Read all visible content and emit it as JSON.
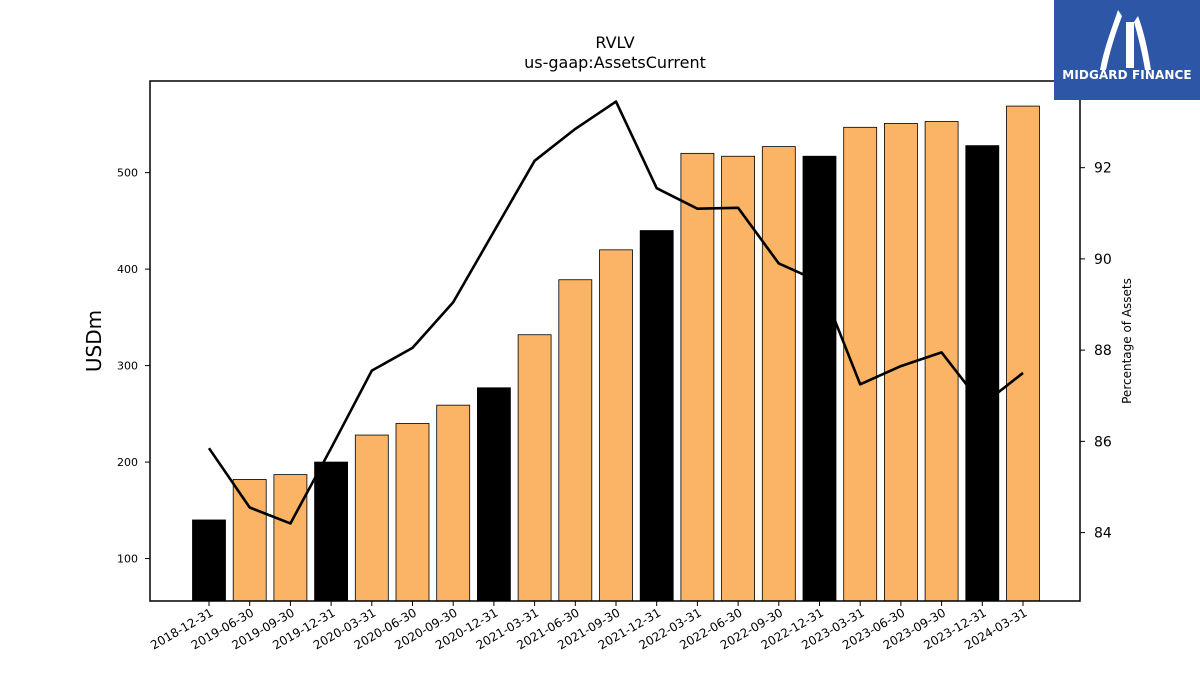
{
  "logo": {
    "text": "MIDGARD FINANCE",
    "background": "#2d56a6"
  },
  "chart_data": {
    "type": "bar",
    "title": "RVLV",
    "subtitle": "us-gaap:AssetsCurrent",
    "ylabel": "USDm",
    "y2label": "Percentage of Assets",
    "ylim": [
      56,
      595
    ],
    "y2lim": [
      82.5,
      93.9
    ],
    "yticks": [
      100,
      200,
      300,
      400,
      500
    ],
    "y2ticks": [
      84,
      86,
      88,
      90,
      92
    ],
    "categories": [
      "2018-12-31",
      "2019-06-30",
      "2019-09-30",
      "2019-12-31",
      "2020-03-31",
      "2020-06-30",
      "2020-09-30",
      "2020-12-31",
      "2021-03-31",
      "2021-06-30",
      "2021-09-30",
      "2021-12-31",
      "2022-03-31",
      "2022-06-30",
      "2022-09-30",
      "2022-12-31",
      "2023-03-31",
      "2023-06-30",
      "2023-09-30",
      "2023-12-31",
      "2024-03-31"
    ],
    "bar_values": [
      140,
      182,
      187,
      200,
      228,
      240,
      259,
      277,
      332,
      389,
      420,
      440,
      520,
      517,
      527,
      517,
      547,
      551,
      553,
      528,
      569
    ],
    "bar_colors": [
      "#000000",
      "#fbb365",
      "#fbb365",
      "#000000",
      "#fbb365",
      "#fbb365",
      "#fbb365",
      "#000000",
      "#fbb365",
      "#fbb365",
      "#fbb365",
      "#000000",
      "#fbb365",
      "#fbb365",
      "#fbb365",
      "#000000",
      "#fbb365",
      "#fbb365",
      "#fbb365",
      "#000000",
      "#fbb365"
    ],
    "line_values": [
      85.85,
      84.55,
      84.2,
      85.85,
      87.55,
      88.05,
      89.05,
      90.6,
      92.15,
      92.85,
      93.45,
      91.55,
      91.1,
      91.12,
      89.9,
      89.5,
      87.25,
      87.65,
      87.95,
      86.8,
      87.5
    ],
    "line_color": "#000000"
  }
}
